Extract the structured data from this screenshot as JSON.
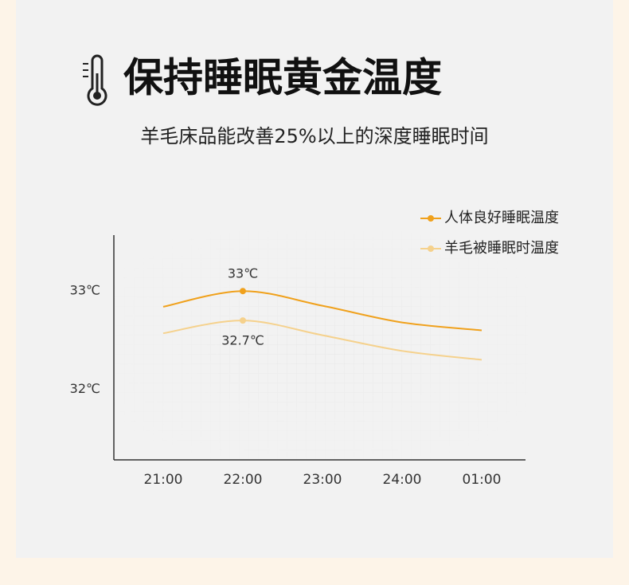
{
  "chart_data": {
    "type": "line",
    "title": "保持睡眠黄金温度",
    "subtitle": "羊毛床品能改善25%以上的深度睡眠时间",
    "categories": [
      "21:00",
      "22:00",
      "23:00",
      "24:00",
      "01:00"
    ],
    "series": [
      {
        "name": "人体良好睡眠温度",
        "color": "#f0a11c",
        "values": [
          32.84,
          33,
          32.85,
          32.68,
          32.6
        ],
        "value_labels": [
          null,
          "33℃",
          null,
          null,
          null
        ]
      },
      {
        "name": "羊毛被睡眠时温度",
        "color": "#f5d18c",
        "values": [
          32.57,
          32.7,
          32.55,
          32.39,
          32.3
        ],
        "value_labels": [
          null,
          "32.7℃",
          null,
          null,
          null
        ]
      }
    ],
    "ylim": [
      31.28,
      33.57
    ],
    "yticks": [
      {
        "value": 32,
        "label": "32℃"
      },
      {
        "value": 33,
        "label": "33℃"
      }
    ],
    "legend": "top-right"
  }
}
